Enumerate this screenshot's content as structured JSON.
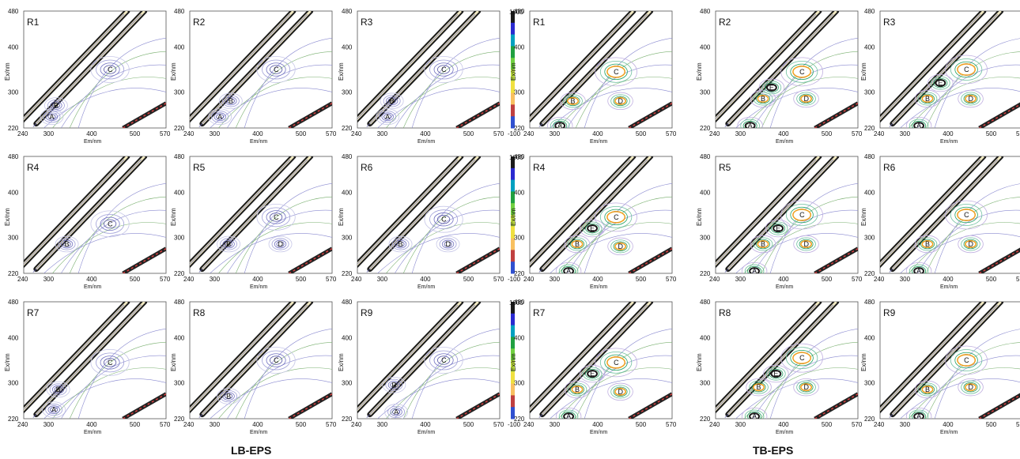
{
  "groups": [
    {
      "label": "LB-EPS"
    },
    {
      "label": "TB-EPS"
    }
  ],
  "axis": {
    "xlabel": "Em/nm",
    "ylabel": "Ex/nm",
    "x_ticks": [
      "240",
      "300",
      "400",
      "500",
      "570"
    ],
    "y_ticks": [
      "220",
      "300",
      "400",
      "480"
    ],
    "x_range": [
      240,
      570
    ],
    "y_range": [
      220,
      480
    ]
  },
  "colorbar": {
    "max_label": "1000",
    "min_label": "-100",
    "colors": [
      "#1a1a1a",
      "#2a2ad0",
      "#00a0c0",
      "#20a040",
      "#70d040",
      "#c0e040",
      "#f0e040",
      "#f8c060",
      "#c04040",
      "#3050d0"
    ]
  },
  "chart_data": {
    "type": "heatmap",
    "description_units": "fluorescence excitation-emission contour maps",
    "panels": [
      {
        "group": "LB-EPS",
        "label": "R1",
        "peaks": [
          {
            "name": "A",
            "em": 305,
            "ex": 245
          },
          {
            "name": "B",
            "em": 315,
            "ex": 270
          },
          {
            "name": "C",
            "em": 440,
            "ex": 350
          }
        ]
      },
      {
        "group": "LB-EPS",
        "label": "R2",
        "peaks": [
          {
            "name": "A",
            "em": 310,
            "ex": 245
          },
          {
            "name": "B",
            "em": 335,
            "ex": 280
          },
          {
            "name": "C",
            "em": 440,
            "ex": 350
          }
        ]
      },
      {
        "group": "LB-EPS",
        "label": "R3",
        "peaks": [
          {
            "name": "A",
            "em": 310,
            "ex": 245
          },
          {
            "name": "B",
            "em": 320,
            "ex": 280
          },
          {
            "name": "C",
            "em": 440,
            "ex": 350
          }
        ]
      },
      {
        "group": "TB-EPS",
        "label": "R1",
        "peaks": [
          {
            "name": "A",
            "em": 310,
            "ex": 225
          },
          {
            "name": "B",
            "em": 340,
            "ex": 280
          },
          {
            "name": "C",
            "em": 440,
            "ex": 345
          },
          {
            "name": "D",
            "em": 450,
            "ex": 280
          }
        ]
      },
      {
        "group": "TB-EPS",
        "label": "R2",
        "peaks": [
          {
            "name": "A",
            "em": 320,
            "ex": 225
          },
          {
            "name": "B",
            "em": 350,
            "ex": 285
          },
          {
            "name": "C",
            "em": 440,
            "ex": 345
          },
          {
            "name": "D",
            "em": 450,
            "ex": 285
          },
          {
            "name": "E",
            "em": 370,
            "ex": 310
          }
        ]
      },
      {
        "group": "TB-EPS",
        "label": "R3",
        "peaks": [
          {
            "name": "A",
            "em": 330,
            "ex": 225
          },
          {
            "name": "B",
            "em": 350,
            "ex": 285
          },
          {
            "name": "C",
            "em": 440,
            "ex": 350
          },
          {
            "name": "D",
            "em": 450,
            "ex": 285
          },
          {
            "name": "E",
            "em": 380,
            "ex": 320
          }
        ]
      },
      {
        "group": "LB-EPS",
        "label": "R4",
        "peaks": [
          {
            "name": "B",
            "em": 340,
            "ex": 285
          },
          {
            "name": "C",
            "em": 440,
            "ex": 330
          }
        ]
      },
      {
        "group": "LB-EPS",
        "label": "R5",
        "peaks": [
          {
            "name": "B",
            "em": 330,
            "ex": 285
          },
          {
            "name": "C",
            "em": 440,
            "ex": 345
          },
          {
            "name": "D",
            "em": 450,
            "ex": 285
          }
        ]
      },
      {
        "group": "LB-EPS",
        "label": "R6",
        "peaks": [
          {
            "name": "B",
            "em": 340,
            "ex": 285
          },
          {
            "name": "C",
            "em": 440,
            "ex": 340
          },
          {
            "name": "D",
            "em": 450,
            "ex": 285
          }
        ]
      },
      {
        "group": "TB-EPS",
        "label": "R4",
        "peaks": [
          {
            "name": "A",
            "em": 330,
            "ex": 225
          },
          {
            "name": "B",
            "em": 350,
            "ex": 285
          },
          {
            "name": "C",
            "em": 440,
            "ex": 345
          },
          {
            "name": "D",
            "em": 450,
            "ex": 280
          },
          {
            "name": "E",
            "em": 385,
            "ex": 320
          }
        ]
      },
      {
        "group": "TB-EPS",
        "label": "R5",
        "peaks": [
          {
            "name": "A",
            "em": 330,
            "ex": 225
          },
          {
            "name": "B",
            "em": 350,
            "ex": 285
          },
          {
            "name": "C",
            "em": 440,
            "ex": 350
          },
          {
            "name": "D",
            "em": 450,
            "ex": 285
          },
          {
            "name": "E",
            "em": 385,
            "ex": 320
          }
        ]
      },
      {
        "group": "TB-EPS",
        "label": "R6",
        "peaks": [
          {
            "name": "A",
            "em": 330,
            "ex": 225
          },
          {
            "name": "B",
            "em": 350,
            "ex": 285
          },
          {
            "name": "C",
            "em": 440,
            "ex": 350
          },
          {
            "name": "D",
            "em": 450,
            "ex": 285
          }
        ]
      },
      {
        "group": "LB-EPS",
        "label": "R7",
        "peaks": [
          {
            "name": "A",
            "em": 310,
            "ex": 240
          },
          {
            "name": "B",
            "em": 320,
            "ex": 285
          },
          {
            "name": "C",
            "em": 440,
            "ex": 345
          }
        ]
      },
      {
        "group": "LB-EPS",
        "label": "R8",
        "peaks": [
          {
            "name": "B",
            "em": 330,
            "ex": 270
          },
          {
            "name": "C",
            "em": 440,
            "ex": 350
          }
        ]
      },
      {
        "group": "LB-EPS",
        "label": "R9",
        "peaks": [
          {
            "name": "A",
            "em": 330,
            "ex": 235
          },
          {
            "name": "B",
            "em": 325,
            "ex": 295
          },
          {
            "name": "C",
            "em": 440,
            "ex": 350
          }
        ]
      },
      {
        "group": "TB-EPS",
        "label": "R7",
        "peaks": [
          {
            "name": "A",
            "em": 330,
            "ex": 225
          },
          {
            "name": "B",
            "em": 350,
            "ex": 285
          },
          {
            "name": "C",
            "em": 440,
            "ex": 345
          },
          {
            "name": "D",
            "em": 450,
            "ex": 280
          },
          {
            "name": "E",
            "em": 385,
            "ex": 320
          }
        ]
      },
      {
        "group": "TB-EPS",
        "label": "R8",
        "peaks": [
          {
            "name": "A",
            "em": 330,
            "ex": 225
          },
          {
            "name": "B",
            "em": 340,
            "ex": 290
          },
          {
            "name": "C",
            "em": 440,
            "ex": 355
          },
          {
            "name": "D",
            "em": 450,
            "ex": 290
          },
          {
            "name": "E",
            "em": 380,
            "ex": 320
          }
        ]
      },
      {
        "group": "TB-EPS",
        "label": "R9",
        "peaks": [
          {
            "name": "A",
            "em": 330,
            "ex": 225
          },
          {
            "name": "B",
            "em": 350,
            "ex": 285
          },
          {
            "name": "C",
            "em": 440,
            "ex": 350
          },
          {
            "name": "D",
            "em": 450,
            "ex": 290
          }
        ]
      }
    ]
  }
}
